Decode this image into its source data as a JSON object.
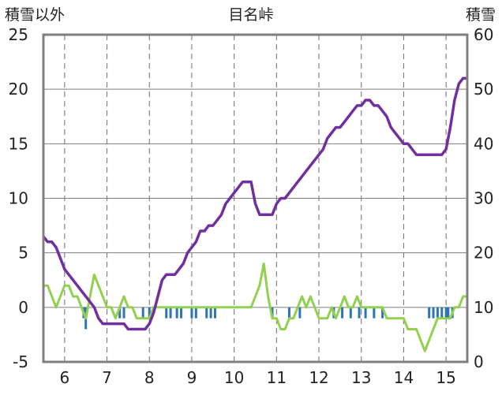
{
  "chart_data": {
    "type": "line",
    "title": "目名峠",
    "ylabel_left": "積雪以外",
    "ylabel_right": "積雪",
    "x_ticks": [
      "6",
      "7",
      "8",
      "9",
      "10",
      "11",
      "12",
      "13",
      "14",
      "15"
    ],
    "xlim": [
      5.5,
      15.5
    ],
    "ylim_left": [
      -5,
      25
    ],
    "ylim_right": [
      0,
      60
    ],
    "y_ticks_left": [
      -5,
      0,
      5,
      10,
      15,
      20,
      25
    ],
    "y_ticks_right": [
      0,
      10,
      20,
      30,
      40,
      50,
      60
    ],
    "grid": true,
    "colors": {
      "snow": "#7030a0",
      "temp": "#92d050",
      "precip": "#2e75b6",
      "frame": "#808080"
    },
    "series": [
      {
        "axis": "right",
        "points": [
          [
            5.5,
            23
          ],
          [
            5.6,
            22
          ],
          [
            5.7,
            22
          ],
          [
            5.8,
            21
          ],
          [
            5.9,
            19
          ],
          [
            6.0,
            17
          ],
          [
            6.1,
            16
          ],
          [
            6.2,
            15
          ],
          [
            6.3,
            14
          ],
          [
            6.4,
            13
          ],
          [
            6.5,
            12
          ],
          [
            6.6,
            11
          ],
          [
            6.7,
            10
          ],
          [
            6.8,
            8
          ],
          [
            6.9,
            7
          ],
          [
            7.0,
            7
          ],
          [
            7.1,
            7
          ],
          [
            7.2,
            7
          ],
          [
            7.3,
            7
          ],
          [
            7.4,
            7
          ],
          [
            7.5,
            6
          ],
          [
            7.6,
            6
          ],
          [
            7.7,
            6
          ],
          [
            7.8,
            6
          ],
          [
            7.9,
            6
          ],
          [
            8.0,
            7
          ],
          [
            8.1,
            9
          ],
          [
            8.2,
            12
          ],
          [
            8.3,
            15
          ],
          [
            8.4,
            16
          ],
          [
            8.5,
            16
          ],
          [
            8.6,
            16
          ],
          [
            8.7,
            17
          ],
          [
            8.8,
            18
          ],
          [
            8.9,
            20
          ],
          [
            9.0,
            21
          ],
          [
            9.1,
            22
          ],
          [
            9.2,
            24
          ],
          [
            9.3,
            24
          ],
          [
            9.4,
            25
          ],
          [
            9.5,
            25
          ],
          [
            9.6,
            26
          ],
          [
            9.7,
            27
          ],
          [
            9.8,
            29
          ],
          [
            9.9,
            30
          ],
          [
            10.0,
            31
          ],
          [
            10.1,
            32
          ],
          [
            10.2,
            33
          ],
          [
            10.3,
            33
          ],
          [
            10.4,
            33
          ],
          [
            10.5,
            29
          ],
          [
            10.6,
            27
          ],
          [
            10.7,
            27
          ],
          [
            10.8,
            27
          ],
          [
            10.9,
            27
          ],
          [
            11.0,
            29
          ],
          [
            11.1,
            30
          ],
          [
            11.2,
            30
          ],
          [
            11.3,
            31
          ],
          [
            11.4,
            32
          ],
          [
            11.5,
            33
          ],
          [
            11.6,
            34
          ],
          [
            11.7,
            35
          ],
          [
            11.8,
            36
          ],
          [
            11.9,
            37
          ],
          [
            12.0,
            38
          ],
          [
            12.1,
            39
          ],
          [
            12.2,
            41
          ],
          [
            12.3,
            42
          ],
          [
            12.4,
            43
          ],
          [
            12.5,
            43
          ],
          [
            12.6,
            44
          ],
          [
            12.7,
            45
          ],
          [
            12.8,
            46
          ],
          [
            12.9,
            47
          ],
          [
            13.0,
            47
          ],
          [
            13.1,
            48
          ],
          [
            13.2,
            48
          ],
          [
            13.3,
            47
          ],
          [
            13.4,
            47
          ],
          [
            13.5,
            46
          ],
          [
            13.6,
            45
          ],
          [
            13.7,
            43
          ],
          [
            13.8,
            42
          ],
          [
            13.9,
            41
          ],
          [
            14.0,
            40
          ],
          [
            14.1,
            40
          ],
          [
            14.2,
            39
          ],
          [
            14.3,
            38
          ],
          [
            14.4,
            38
          ],
          [
            14.5,
            38
          ],
          [
            14.6,
            38
          ],
          [
            14.7,
            38
          ],
          [
            14.8,
            38
          ],
          [
            14.9,
            38
          ],
          [
            15.0,
            39
          ],
          [
            15.1,
            43
          ],
          [
            15.2,
            48
          ],
          [
            15.3,
            51
          ],
          [
            15.4,
            52
          ],
          [
            15.5,
            52
          ]
        ]
      },
      {
        "axis": "left",
        "points": [
          [
            5.5,
            2
          ],
          [
            5.6,
            2
          ],
          [
            5.7,
            1
          ],
          [
            5.8,
            0
          ],
          [
            5.9,
            1
          ],
          [
            6.0,
            2
          ],
          [
            6.1,
            2
          ],
          [
            6.2,
            1
          ],
          [
            6.3,
            1
          ],
          [
            6.4,
            0
          ],
          [
            6.5,
            -1
          ],
          [
            6.6,
            1
          ],
          [
            6.7,
            3
          ],
          [
            6.8,
            2
          ],
          [
            6.9,
            1
          ],
          [
            7.0,
            0
          ],
          [
            7.1,
            0
          ],
          [
            7.2,
            -1
          ],
          [
            7.3,
            0
          ],
          [
            7.4,
            1
          ],
          [
            7.5,
            0
          ],
          [
            7.6,
            0
          ],
          [
            7.7,
            -1
          ],
          [
            7.8,
            -1
          ],
          [
            7.9,
            -1
          ],
          [
            8.0,
            -1
          ],
          [
            8.1,
            0
          ],
          [
            8.2,
            0
          ],
          [
            8.3,
            0
          ],
          [
            8.4,
            0
          ],
          [
            8.5,
            0
          ],
          [
            8.6,
            0
          ],
          [
            8.7,
            0
          ],
          [
            8.8,
            0
          ],
          [
            8.9,
            0
          ],
          [
            9.0,
            0
          ],
          [
            9.1,
            0
          ],
          [
            9.2,
            0
          ],
          [
            9.3,
            0
          ],
          [
            9.4,
            0
          ],
          [
            9.5,
            0
          ],
          [
            9.6,
            0
          ],
          [
            9.7,
            0
          ],
          [
            9.8,
            0
          ],
          [
            9.9,
            0
          ],
          [
            10.0,
            0
          ],
          [
            10.1,
            0
          ],
          [
            10.2,
            0
          ],
          [
            10.3,
            0
          ],
          [
            10.4,
            0
          ],
          [
            10.5,
            1
          ],
          [
            10.6,
            2
          ],
          [
            10.7,
            4
          ],
          [
            10.8,
            1
          ],
          [
            10.9,
            -1
          ],
          [
            11.0,
            -1
          ],
          [
            11.1,
            -2
          ],
          [
            11.2,
            -2
          ],
          [
            11.3,
            -1
          ],
          [
            11.4,
            -1
          ],
          [
            11.5,
            0
          ],
          [
            11.6,
            1
          ],
          [
            11.7,
            0
          ],
          [
            11.8,
            1
          ],
          [
            11.9,
            0
          ],
          [
            12.0,
            -1
          ],
          [
            12.1,
            -1
          ],
          [
            12.2,
            -1
          ],
          [
            12.3,
            0
          ],
          [
            12.4,
            -1
          ],
          [
            12.5,
            0
          ],
          [
            12.6,
            1
          ],
          [
            12.7,
            0
          ],
          [
            12.8,
            0
          ],
          [
            12.9,
            1
          ],
          [
            13.0,
            0
          ],
          [
            13.1,
            0
          ],
          [
            13.2,
            0
          ],
          [
            13.3,
            0
          ],
          [
            13.4,
            0
          ],
          [
            13.5,
            0
          ],
          [
            13.6,
            -1
          ],
          [
            13.7,
            -1
          ],
          [
            13.8,
            -1
          ],
          [
            13.9,
            -1
          ],
          [
            14.0,
            -1
          ],
          [
            14.1,
            -2
          ],
          [
            14.2,
            -2
          ],
          [
            14.3,
            -2
          ],
          [
            14.4,
            -3
          ],
          [
            14.5,
            -4
          ],
          [
            14.6,
            -3
          ],
          [
            14.7,
            -2
          ],
          [
            14.8,
            -1
          ],
          [
            14.9,
            -1
          ],
          [
            15.0,
            -1
          ],
          [
            15.1,
            -1
          ],
          [
            15.2,
            0
          ],
          [
            15.3,
            0
          ],
          [
            15.4,
            1
          ],
          [
            15.5,
            1
          ]
        ]
      },
      {
        "axis": "left",
        "points": [
          [
            6.45,
            -1
          ],
          [
            6.5,
            -2
          ],
          [
            7.3,
            -1
          ],
          [
            7.4,
            -1
          ],
          [
            7.85,
            -1
          ],
          [
            8.0,
            -1
          ],
          [
            8.4,
            -1
          ],
          [
            8.5,
            -1
          ],
          [
            8.65,
            -1
          ],
          [
            8.75,
            -1
          ],
          [
            9.0,
            -1
          ],
          [
            9.1,
            -1
          ],
          [
            9.35,
            -1
          ],
          [
            9.45,
            -1
          ],
          [
            9.55,
            -1
          ],
          [
            10.9,
            -1
          ],
          [
            11.3,
            -1
          ],
          [
            11.55,
            -1
          ],
          [
            12.35,
            -1
          ],
          [
            12.55,
            -1
          ],
          [
            12.75,
            -1
          ],
          [
            12.95,
            -1
          ],
          [
            13.1,
            -1
          ],
          [
            13.3,
            -1
          ],
          [
            13.5,
            -1
          ],
          [
            14.6,
            -1
          ],
          [
            14.7,
            -1
          ],
          [
            14.8,
            -1
          ],
          [
            14.9,
            -1
          ],
          [
            15.0,
            -1
          ],
          [
            15.05,
            -1
          ],
          [
            15.15,
            -1
          ]
        ]
      }
    ]
  }
}
